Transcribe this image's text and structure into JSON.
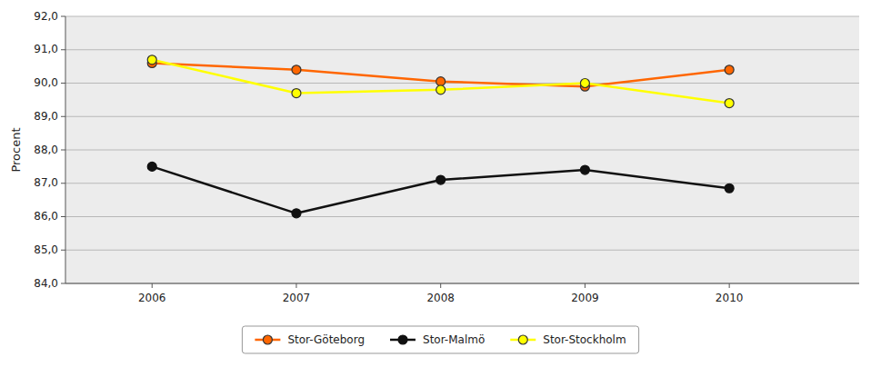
{
  "chart_data": {
    "type": "line",
    "y_label": "Procent",
    "x": [
      2006,
      2007,
      2008,
      2009,
      2010
    ],
    "xlim": [
      2005.4,
      2010.9
    ],
    "xticks": [
      2006,
      2007,
      2008,
      2009,
      2010
    ],
    "ylim": [
      84.0,
      92.0
    ],
    "yticks": [
      {
        "value": 84.0,
        "label": "84,0"
      },
      {
        "value": 85.0,
        "label": "85,0"
      },
      {
        "value": 86.0,
        "label": "86,0"
      },
      {
        "value": 87.0,
        "label": "87,0"
      },
      {
        "value": 88.0,
        "label": "88,0"
      },
      {
        "value": 89.0,
        "label": "89,0"
      },
      {
        "value": 90.0,
        "label": "90,0"
      },
      {
        "value": 91.0,
        "label": "91,0"
      },
      {
        "value": 92.0,
        "label": "92,0"
      }
    ],
    "grid": true,
    "legend": "bottom",
    "marker": "circle",
    "series": [
      {
        "name": "Stor-Göteborg",
        "color": "#FF6600",
        "values": [
          90.6,
          90.4,
          90.05,
          89.9,
          90.4
        ]
      },
      {
        "name": "Stor-Malmö",
        "color": "#111111",
        "values": [
          87.5,
          86.1,
          87.1,
          87.4,
          86.85
        ]
      },
      {
        "name": "Stor-Stockholm",
        "color": "#FFFF00",
        "values": [
          90.7,
          89.7,
          89.8,
          90.0,
          89.4
        ]
      }
    ]
  }
}
